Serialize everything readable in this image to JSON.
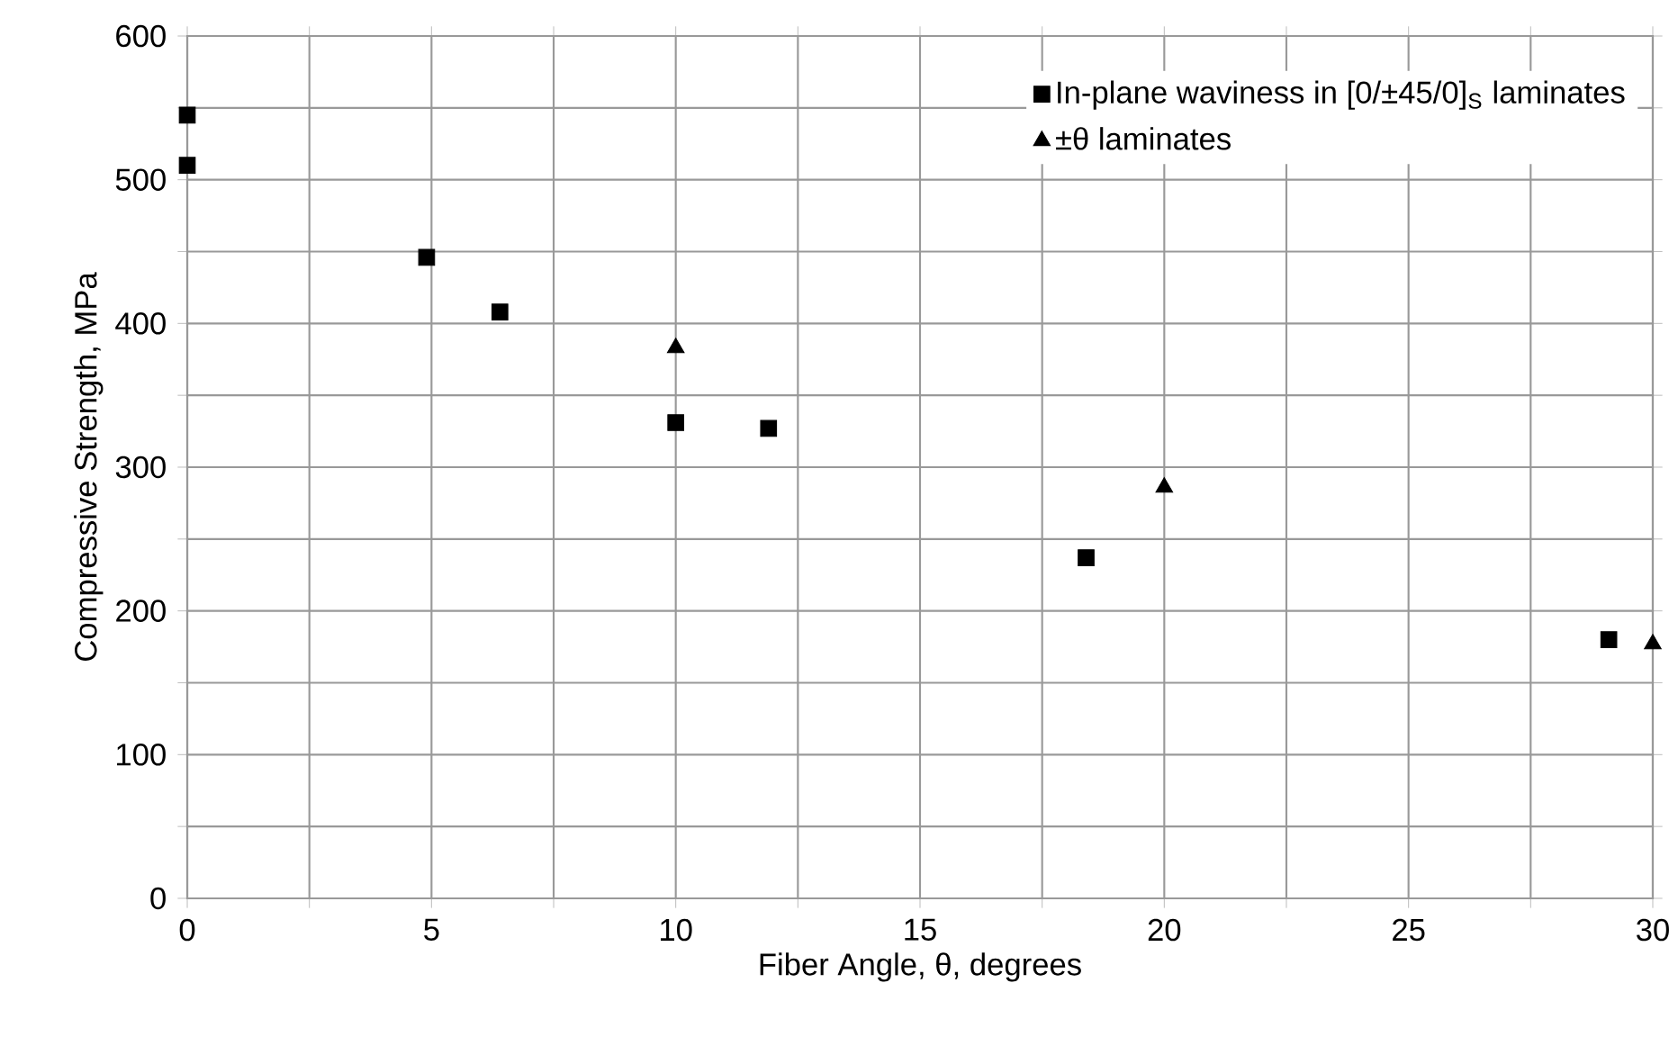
{
  "chart_data": {
    "type": "scatter",
    "xlabel": "Fiber Angle, θ, degrees",
    "ylabel": "Compressive Strength, MPa",
    "xlim": [
      0,
      30
    ],
    "ylim": [
      0,
      600
    ],
    "xticks": [
      0,
      {
        "value": 2.5,
        "label": null
      },
      5,
      {
        "value": 7.5,
        "label": null
      },
      10,
      {
        "value": 12.5,
        "label": null
      },
      15,
      {
        "value": 17.5,
        "label": null
      },
      20,
      {
        "value": 22.5,
        "label": null
      },
      25,
      {
        "value": 27.5,
        "label": null
      },
      30
    ],
    "yticks": [
      0,
      {
        "value": 50,
        "label": null
      },
      100,
      {
        "value": 150,
        "label": null
      },
      200,
      {
        "value": 250,
        "label": null
      },
      300,
      {
        "value": 350,
        "label": null
      },
      400,
      {
        "value": 450,
        "label": null
      },
      500,
      {
        "value": 550,
        "label": null
      },
      600
    ],
    "grid": true,
    "legend": "top right",
    "series": [
      {
        "name": "In-plane waviness in [0/±45/0]$_{S}$ laminates",
        "color": "#000000",
        "marker": "square",
        "x": [
          0,
          0,
          4.9,
          6.4,
          10,
          11.9,
          18.4,
          29.1
        ],
        "values": [
          545,
          510,
          446,
          408,
          331,
          327,
          237,
          180
        ]
      },
      {
        "name": "±θ laminates",
        "color": "#000000",
        "marker": "triangle",
        "x": [
          10,
          20,
          30
        ],
        "values": [
          383,
          286,
          177
        ]
      }
    ]
  }
}
